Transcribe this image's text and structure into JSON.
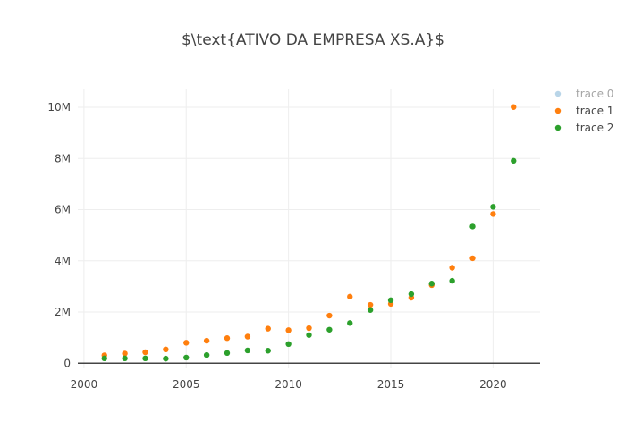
{
  "chart_data": {
    "type": "scatter",
    "title": "$\\text{ATIVO DA EMPRESA XS.A}$",
    "xlabel": "",
    "ylabel": "",
    "xlim": [
      1999.7,
      2022.3
    ],
    "ylim": [
      -200000,
      10700000
    ],
    "x_ticks": [
      2000,
      2005,
      2010,
      2015,
      2020
    ],
    "x_tick_labels": [
      "2000",
      "2005",
      "2010",
      "2015",
      "2020"
    ],
    "y_ticks": [
      0,
      2000000,
      4000000,
      6000000,
      8000000,
      10000000
    ],
    "y_tick_labels": [
      "0",
      "2M",
      "4M",
      "6M",
      "8M",
      "10M"
    ],
    "grid": true,
    "legend_position": "top-right",
    "series": [
      {
        "name": "trace 0",
        "color": "#7fb3d5",
        "hidden": true,
        "x": [],
        "y": []
      },
      {
        "name": "trace 1",
        "color": "#ff7f0e",
        "hidden": false,
        "x": [
          2001,
          2002,
          2003,
          2004,
          2005,
          2006,
          2007,
          2008,
          2009,
          2010,
          2011,
          2012,
          2013,
          2014,
          2015,
          2016,
          2017,
          2018,
          2019,
          2020,
          2021
        ],
        "y": [
          310000,
          380000,
          430000,
          540000,
          800000,
          880000,
          980000,
          1040000,
          1350000,
          1290000,
          1370000,
          1860000,
          2600000,
          2280000,
          2320000,
          2560000,
          3050000,
          3730000,
          4100000,
          5830000,
          10010000
        ]
      },
      {
        "name": "trace 2",
        "color": "#2ca02c",
        "hidden": false,
        "x": [
          2001,
          2002,
          2003,
          2004,
          2005,
          2006,
          2007,
          2008,
          2009,
          2010,
          2011,
          2012,
          2013,
          2014,
          2015,
          2016,
          2017,
          2018,
          2019,
          2020,
          2021
        ],
        "y": [
          190000,
          190000,
          190000,
          180000,
          220000,
          320000,
          400000,
          500000,
          490000,
          750000,
          1100000,
          1310000,
          1570000,
          2080000,
          2460000,
          2700000,
          3110000,
          3220000,
          5340000,
          6110000,
          7910000
        ]
      }
    ]
  },
  "colors": {
    "grid": "#eeeeee",
    "zero_line": "#444444",
    "text": "#444444"
  }
}
